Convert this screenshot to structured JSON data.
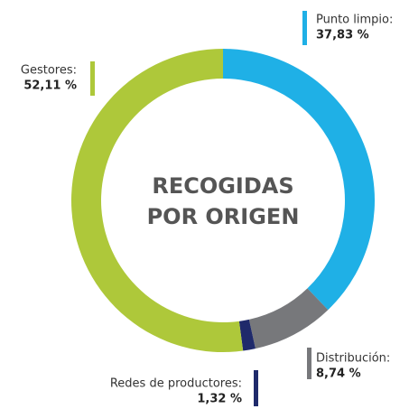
{
  "chart_data": {
    "type": "donut",
    "title": [
      "RECOGIDAS",
      "POR ORIGEN"
    ],
    "categories": [
      "Punto limpio:",
      "Distribución:",
      "Redes de productores:",
      "Gestores:"
    ],
    "values": [
      37.83,
      8.74,
      1.32,
      52.11
    ],
    "value_labels": [
      "37,83 %",
      "8,74 %",
      "1,32 %",
      "52,11 %"
    ],
    "colors": [
      "#1fb0e6",
      "#77787b",
      "#1f2a6b",
      "#aec83a"
    ]
  }
}
